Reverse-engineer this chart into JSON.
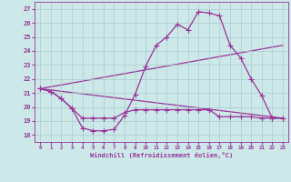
{
  "xlabel": "Windchill (Refroidissement éolien,°C)",
  "bg_color": "#cce8e8",
  "line_color": "#993399",
  "grid_color": "#aacccc",
  "xlim": [
    -0.5,
    23.5
  ],
  "ylim": [
    17.5,
    27.5
  ],
  "yticks": [
    18,
    19,
    20,
    21,
    22,
    23,
    24,
    25,
    26,
    27
  ],
  "xticks": [
    0,
    1,
    2,
    3,
    4,
    5,
    6,
    7,
    8,
    9,
    10,
    11,
    12,
    13,
    14,
    15,
    16,
    17,
    18,
    19,
    20,
    21,
    22,
    23
  ],
  "line1_x": [
    0,
    1,
    2,
    3,
    4,
    5,
    6,
    7,
    8,
    9,
    10,
    11,
    12,
    13,
    14,
    15,
    16,
    17,
    18,
    19,
    20,
    21,
    22,
    23
  ],
  "line1_y": [
    21.3,
    21.1,
    20.6,
    19.9,
    18.5,
    18.3,
    18.3,
    18.4,
    19.4,
    20.9,
    22.9,
    24.4,
    25.0,
    25.9,
    25.5,
    26.8,
    26.7,
    26.5,
    24.4,
    23.5,
    22.0,
    20.8,
    19.2,
    19.2
  ],
  "line2_x": [
    0,
    1,
    2,
    3,
    4,
    5,
    6,
    7,
    8,
    9,
    10,
    11,
    12,
    13,
    14,
    15,
    16,
    17,
    18,
    19,
    20,
    21,
    22,
    23
  ],
  "line2_y": [
    21.3,
    21.1,
    20.6,
    19.9,
    19.2,
    19.2,
    19.2,
    19.2,
    19.6,
    19.8,
    19.8,
    19.8,
    19.8,
    19.8,
    19.8,
    19.8,
    19.8,
    19.3,
    19.3,
    19.3,
    19.3,
    19.2,
    19.2,
    19.2
  ],
  "line3_x": [
    0,
    23
  ],
  "line3_y": [
    21.3,
    24.4
  ],
  "line4_x": [
    0,
    23
  ],
  "line4_y": [
    21.3,
    19.2
  ]
}
